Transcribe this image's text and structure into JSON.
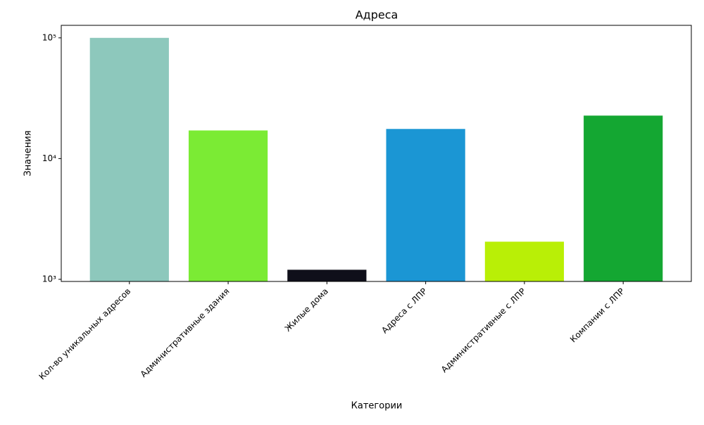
{
  "chart_data": {
    "type": "bar",
    "title": "Адреса",
    "x_label": "Категории",
    "y_label": "Значения",
    "categories": [
      "Кол-во уникальных адресов",
      "Административные здания",
      "Жилые дома",
      "Адреса с ЛПР",
      "Административные с ЛПР",
      "Компании с ЛПР"
    ],
    "values": [
      100000,
      17100,
      1200,
      17600,
      2050,
      22700
    ],
    "colors": [
      "#8dc8bc",
      "#7beb34",
      "#0f0f1a",
      "#1b96d4",
      "#b9ef06",
      "#14a732"
    ],
    "log_scale": true,
    "grid": false,
    "ylim": [
      960,
      127000
    ],
    "yticks": [
      {
        "value": 1000,
        "label": "10³"
      },
      {
        "value": 10000,
        "label": "10⁴"
      },
      {
        "value": 100000,
        "label": "10⁵"
      }
    ]
  }
}
